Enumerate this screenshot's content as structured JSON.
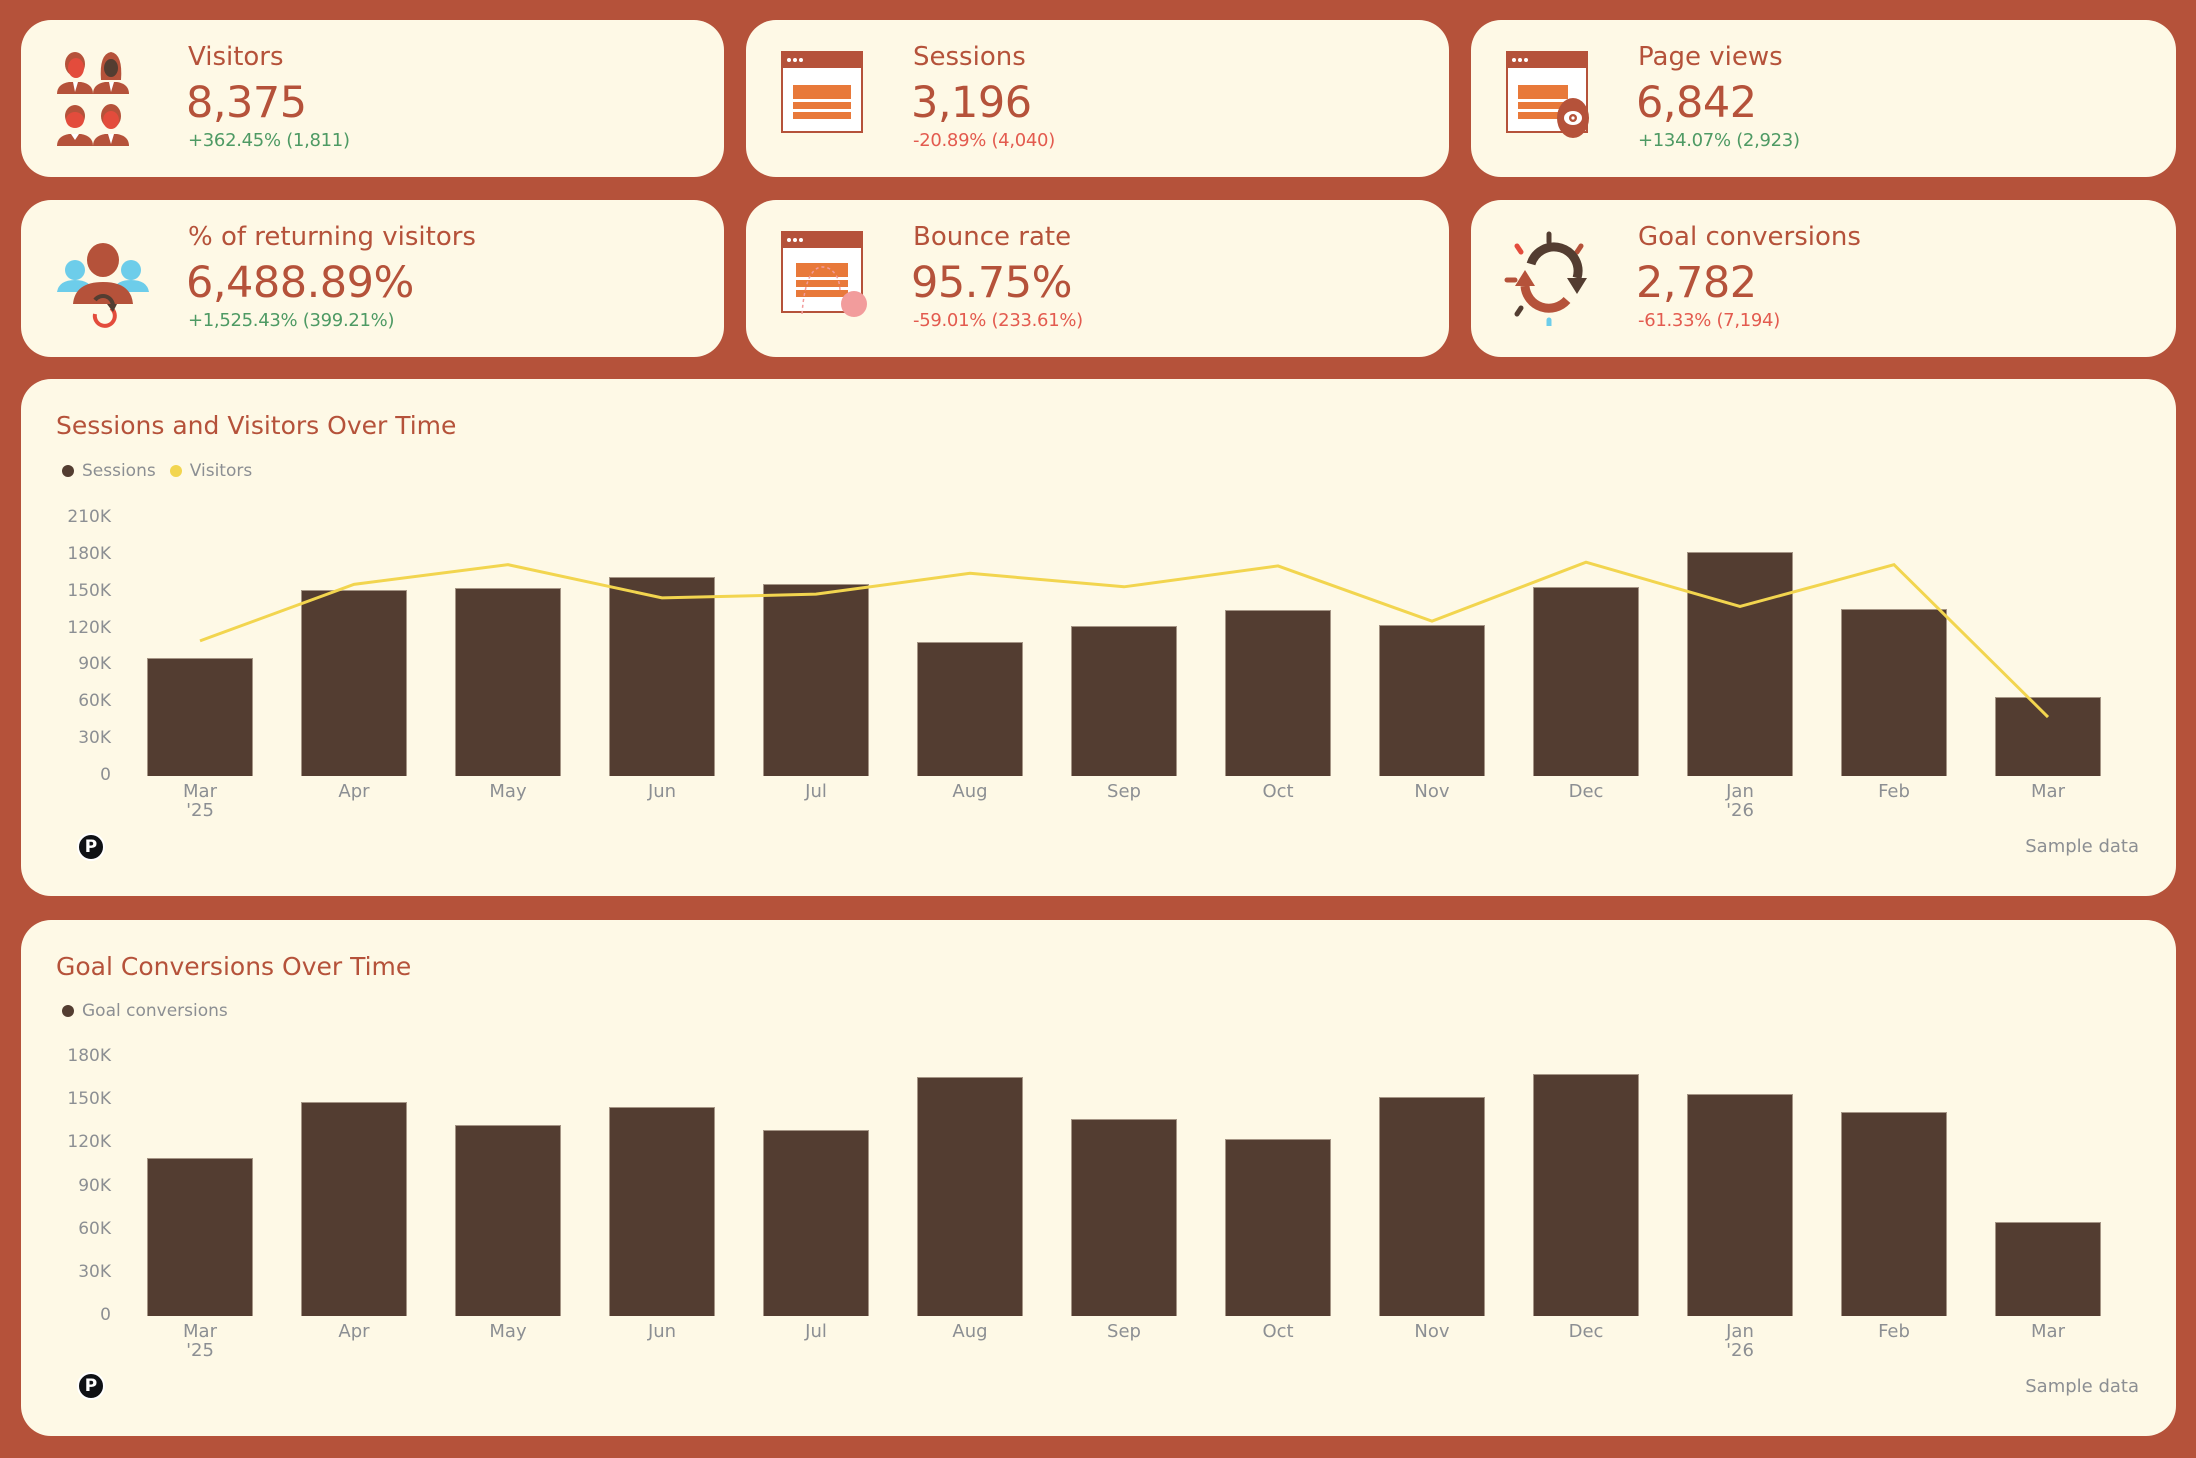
{
  "colors": {
    "background": "#b5523a",
    "card": "#fef9e6",
    "accent": "#b5523a",
    "positive": "#4e9a64",
    "negative": "#e35b4f",
    "bar": "#533d31",
    "line": "#f2d54f",
    "axis_text": "#8c8f93"
  },
  "kpis": [
    {
      "id": "visitors",
      "label": "Visitors",
      "value": "8,375",
      "delta": "+362.45% (1,811)",
      "trend": "up",
      "icon": "people-group-icon"
    },
    {
      "id": "sessions",
      "label": "Sessions",
      "value": "3,196",
      "delta": "-20.89% (4,040)",
      "trend": "down",
      "icon": "browser-window-icon"
    },
    {
      "id": "page-views",
      "label": "Page views",
      "value": "6,842",
      "delta": "+134.07% (2,923)",
      "trend": "up",
      "icon": "browser-eye-icon"
    },
    {
      "id": "returning-visitors",
      "label": "% of returning visitors",
      "value": "6,488.89%",
      "delta": "+1,525.43% (399.21%)",
      "trend": "up",
      "icon": "returning-users-icon"
    },
    {
      "id": "bounce-rate",
      "label": "Bounce rate",
      "value": "95.75%",
      "delta": "-59.01% (233.61%)",
      "trend": "down",
      "icon": "browser-bounce-icon"
    },
    {
      "id": "goal-conversions",
      "label": "Goal conversions",
      "value": "2,782",
      "delta": "-61.33% (7,194)",
      "trend": "down",
      "icon": "refresh-cycle-icon"
    }
  ],
  "charts": {
    "sessions_visitors": {
      "title": "Sessions and Visitors Over Time",
      "legend": [
        "Sessions",
        "Visitors"
      ],
      "footer": "Sample data",
      "logo": "P"
    },
    "goal_conversions": {
      "title": "Goal Conversions Over Time",
      "legend": [
        "Goal conversions"
      ],
      "footer": "Sample data",
      "logo": "P"
    }
  },
  "chart_data": [
    {
      "type": "bar",
      "title": "Sessions and Visitors Over Time",
      "categories": [
        "Mar '25",
        "Apr",
        "May",
        "Jun",
        "Jul",
        "Aug",
        "Sep",
        "Oct",
        "Nov",
        "Dec",
        "Jan '26",
        "Feb",
        "Mar"
      ],
      "x_labels": [
        [
          "Mar",
          "'25"
        ],
        [
          "Apr"
        ],
        [
          "May"
        ],
        [
          "Jun"
        ],
        [
          "Jul"
        ],
        [
          "Aug"
        ],
        [
          "Sep"
        ],
        [
          "Oct"
        ],
        [
          "Nov"
        ],
        [
          "Dec"
        ],
        [
          "Jan",
          "'26"
        ],
        [
          "Feb"
        ],
        [
          "Mar"
        ]
      ],
      "series": [
        {
          "name": "Sessions",
          "type": "bar",
          "color": "#533d31",
          "values": [
            96000,
            151000,
            153000,
            162000,
            156000,
            109000,
            122000,
            135000,
            123000,
            154000,
            182000,
            136000,
            64000
          ]
        },
        {
          "name": "Visitors",
          "type": "line",
          "color": "#f2d54f",
          "values": [
            110000,
            156000,
            172000,
            145000,
            148000,
            165000,
            154000,
            171000,
            126000,
            174000,
            138000,
            172000,
            48000
          ]
        }
      ],
      "yticks": [
        "0",
        "30K",
        "60K",
        "90K",
        "120K",
        "150K",
        "180K",
        "210K"
      ],
      "ylim": [
        0,
        210000
      ],
      "xlabel": "",
      "ylabel": "",
      "legend_position": "top-left",
      "grid": false
    },
    {
      "type": "bar",
      "title": "Goal Conversions Over Time",
      "categories": [
        "Mar '25",
        "Apr",
        "May",
        "Jun",
        "Jul",
        "Aug",
        "Sep",
        "Oct",
        "Nov",
        "Dec",
        "Jan '26",
        "Feb",
        "Mar"
      ],
      "x_labels": [
        [
          "Mar",
          "'25"
        ],
        [
          "Apr"
        ],
        [
          "May"
        ],
        [
          "Jun"
        ],
        [
          "Jul"
        ],
        [
          "Aug"
        ],
        [
          "Sep"
        ],
        [
          "Oct"
        ],
        [
          "Nov"
        ],
        [
          "Dec"
        ],
        [
          "Jan",
          "'26"
        ],
        [
          "Feb"
        ],
        [
          "Mar"
        ]
      ],
      "series": [
        {
          "name": "Goal conversions",
          "type": "bar",
          "color": "#533d31",
          "values": [
            110000,
            149000,
            133000,
            145000,
            129000,
            166000,
            137000,
            123000,
            152000,
            168000,
            154000,
            142000,
            65000
          ]
        }
      ],
      "yticks": [
        "0",
        "30K",
        "60K",
        "90K",
        "120K",
        "150K",
        "180K"
      ],
      "ylim": [
        0,
        180000
      ],
      "xlabel": "",
      "ylabel": "",
      "legend_position": "top-left",
      "grid": false
    }
  ]
}
